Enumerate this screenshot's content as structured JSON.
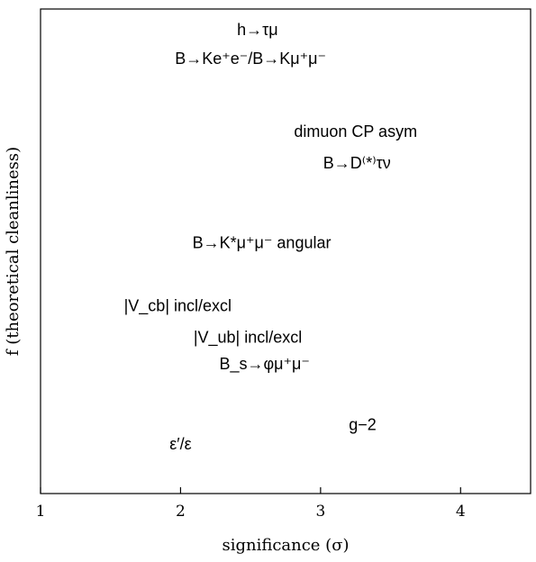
{
  "chart_data": {
    "type": "scatter",
    "title": "",
    "xlabel": "significance (σ)",
    "ylabel": "f (theoretical cleanliness)",
    "xlim": [
      1,
      4.5
    ],
    "ylim": [
      0,
      1
    ],
    "xticks": [
      1,
      2,
      3,
      4
    ],
    "xtick_labels": [
      "1",
      "2",
      "3",
      "4"
    ],
    "yticks": [],
    "grid": false,
    "legend": "none",
    "points": [
      {
        "label": "h→τμ",
        "x": 2.55,
        "y": 0.955
      },
      {
        "label": "B→Ke⁺e⁻/B→Kμ⁺μ⁻",
        "x": 2.5,
        "y": 0.895
      },
      {
        "label": "dimuon CP asym",
        "x": 3.25,
        "y": 0.745
      },
      {
        "label": "B→D⁽*⁾τν",
        "x": 3.26,
        "y": 0.68
      },
      {
        "label": "B→K*μ⁺μ⁻ angular",
        "x": 2.58,
        "y": 0.515
      },
      {
        "label": "|V_cb| incl/excl",
        "x": 1.98,
        "y": 0.385
      },
      {
        "label": "|V_ub| incl/excl",
        "x": 2.48,
        "y": 0.32
      },
      {
        "label": "B_s→φμ⁺μ⁻",
        "x": 2.6,
        "y": 0.265
      },
      {
        "label": "g−2",
        "x": 3.3,
        "y": 0.14
      },
      {
        "label": "ε′/ε",
        "x": 2.0,
        "y": 0.1
      }
    ]
  }
}
